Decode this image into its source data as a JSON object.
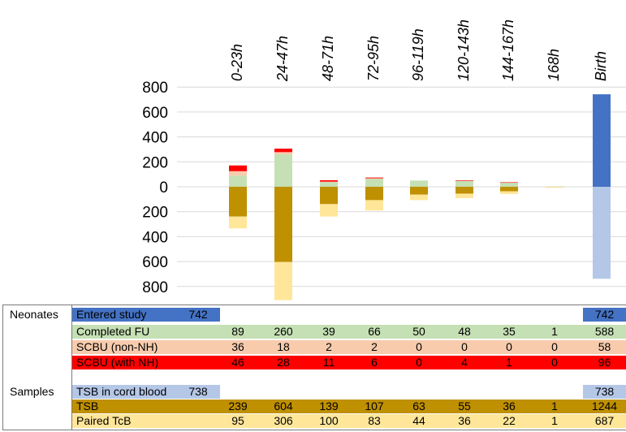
{
  "chart_data": {
    "type": "bar",
    "subtype": "diverging-stacked",
    "categories": [
      "Birth",
      "0-23h",
      "24-47h",
      "48-71h",
      "72-95h",
      "96-119h",
      "120-143h",
      "144-167h",
      "168h"
    ],
    "yticks": [
      "800",
      "600",
      "400",
      "200",
      "0",
      "200",
      "400",
      "600",
      "800"
    ],
    "ylim": [
      -800,
      800
    ],
    "series_up": [
      {
        "name": "Entered study",
        "color": "#4472c4",
        "values": [
          742,
          0,
          0,
          0,
          0,
          0,
          0,
          0,
          0
        ]
      },
      {
        "name": "Completed FU",
        "color": "#c5e0b4",
        "values": [
          0,
          89,
          260,
          39,
          66,
          50,
          48,
          35,
          1
        ]
      },
      {
        "name": "SCBU (non-NH)",
        "color": "#f8cbad",
        "values": [
          0,
          36,
          18,
          2,
          2,
          0,
          0,
          0,
          0
        ]
      },
      {
        "name": "SCBU (with NH)",
        "color": "#ff0000",
        "values": [
          0,
          46,
          28,
          11,
          6,
          0,
          4,
          1,
          0
        ]
      }
    ],
    "series_down": [
      {
        "name": "TSB in cord blood",
        "color": "#b4c7e7",
        "values": [
          738,
          0,
          0,
          0,
          0,
          0,
          0,
          0,
          0
        ]
      },
      {
        "name": "TSB",
        "color": "#bf9000",
        "values": [
          0,
          239,
          604,
          139,
          107,
          63,
          55,
          36,
          1
        ]
      },
      {
        "name": "Paired TcB",
        "color": "#ffe699",
        "values": [
          0,
          95,
          306,
          100,
          83,
          44,
          36,
          22,
          1
        ]
      }
    ]
  },
  "table": {
    "groups": [
      "Neonates",
      "Samples"
    ],
    "rows": [
      {
        "label": "Entered study",
        "color": "#4472c4",
        "cells": [
          "742",
          "",
          "",
          "",
          "",
          "",
          "",
          "",
          ""
        ],
        "total": "742"
      },
      {
        "label": "Completed FU",
        "color": "#c5e0b4",
        "cells": [
          "",
          "89",
          "260",
          "39",
          "66",
          "50",
          "48",
          "35",
          "1"
        ],
        "total": "588"
      },
      {
        "label": "SCBU (non-NH)",
        "color": "#f8cbad",
        "cells": [
          "",
          "36",
          "18",
          "2",
          "2",
          "0",
          "0",
          "0",
          "0"
        ],
        "total": "58"
      },
      {
        "label": "SCBU (with NH)",
        "color": "#ff0000",
        "cells": [
          "",
          "46",
          "28",
          "11",
          "6",
          "0",
          "4",
          "1",
          "0"
        ],
        "total": "96"
      },
      {
        "label": "TSB in cord blood",
        "color": "#b4c7e7",
        "cells": [
          "738",
          "",
          "",
          "",
          "",
          "",
          "",
          "",
          ""
        ],
        "total": "738"
      },
      {
        "label": "TSB",
        "color": "#bf9000",
        "cells": [
          "",
          "239",
          "604",
          "139",
          "107",
          "63",
          "55",
          "36",
          "1"
        ],
        "total": "1244"
      },
      {
        "label": "Paired TcB",
        "color": "#ffe699",
        "cells": [
          "",
          "95",
          "306",
          "100",
          "83",
          "44",
          "36",
          "22",
          "1"
        ],
        "total": "687"
      }
    ]
  }
}
